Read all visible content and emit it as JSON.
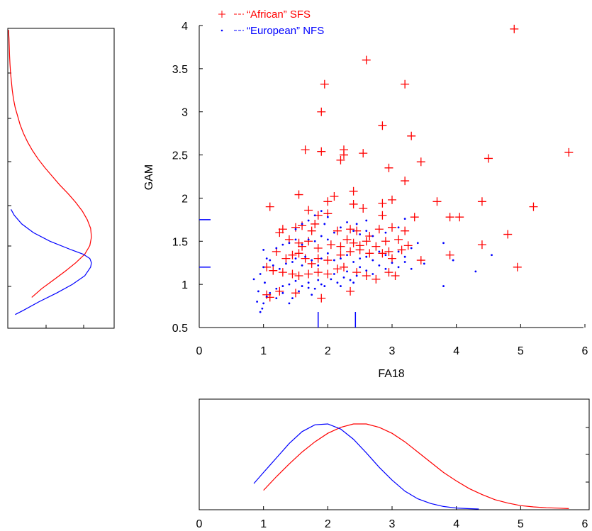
{
  "chart_data": [
    {
      "type": "scatter",
      "panel": "main",
      "xlabel": "FA18",
      "ylabel": "GAM",
      "xlim": [
        0,
        6
      ],
      "ylim": [
        0.5,
        4
      ],
      "xticks": [
        "0",
        "1",
        "2",
        "3",
        "4",
        "5",
        "6"
      ],
      "yticks": [
        "0.5",
        "1",
        "1.5",
        "2",
        "2.5",
        "3",
        "3.5",
        "4"
      ],
      "legend_position": "top-left",
      "series": [
        {
          "name": "“African” SFS",
          "marker": "plus",
          "color": "#ff0000",
          "points": [
            [
              4.9,
              3.96
            ],
            [
              2.6,
              3.6
            ],
            [
              1.95,
              3.32
            ],
            [
              3.2,
              3.32
            ],
            [
              1.9,
              3.0
            ],
            [
              2.85,
              2.84
            ],
            [
              3.3,
              2.72
            ],
            [
              1.65,
              2.56
            ],
            [
              1.9,
              2.54
            ],
            [
              2.55,
              2.52
            ],
            [
              2.25,
              2.56
            ],
            [
              2.25,
              2.5
            ],
            [
              2.2,
              2.44
            ],
            [
              3.45,
              2.42
            ],
            [
              4.5,
              2.46
            ],
            [
              5.75,
              2.53
            ],
            [
              2.95,
              2.35
            ],
            [
              3.2,
              2.2
            ],
            [
              1.55,
              2.04
            ],
            [
              2.0,
              1.96
            ],
            [
              2.1,
              2.02
            ],
            [
              2.4,
              2.08
            ],
            [
              2.4,
              1.93
            ],
            [
              2.55,
              1.88
            ],
            [
              2.85,
              1.94
            ],
            [
              3.0,
              1.98
            ],
            [
              3.7,
              1.96
            ],
            [
              4.4,
              1.96
            ],
            [
              1.1,
              1.9
            ],
            [
              2.85,
              1.8
            ],
            [
              3.35,
              1.78
            ],
            [
              3.9,
              1.78
            ],
            [
              4.05,
              1.78
            ],
            [
              5.2,
              1.9
            ],
            [
              1.7,
              1.86
            ],
            [
              1.85,
              1.8
            ],
            [
              2.0,
              1.82
            ],
            [
              1.8,
              1.7
            ],
            [
              1.75,
              1.62
            ],
            [
              1.6,
              1.68
            ],
            [
              1.5,
              1.66
            ],
            [
              1.3,
              1.64
            ],
            [
              1.25,
              1.6
            ],
            [
              2.15,
              1.62
            ],
            [
              2.35,
              1.64
            ],
            [
              2.45,
              1.62
            ],
            [
              2.65,
              1.56
            ],
            [
              2.8,
              1.64
            ],
            [
              3.0,
              1.66
            ],
            [
              3.2,
              1.62
            ],
            [
              4.8,
              1.58
            ],
            [
              1.4,
              1.52
            ],
            [
              1.55,
              1.48
            ],
            [
              1.6,
              1.44
            ],
            [
              1.7,
              1.5
            ],
            [
              1.85,
              1.42
            ],
            [
              2.05,
              1.46
            ],
            [
              2.2,
              1.44
            ],
            [
              2.3,
              1.52
            ],
            [
              2.4,
              1.48
            ],
            [
              2.5,
              1.45
            ],
            [
              2.6,
              1.5
            ],
            [
              2.75,
              1.44
            ],
            [
              2.9,
              1.5
            ],
            [
              3.1,
              1.52
            ],
            [
              3.25,
              1.45
            ],
            [
              3.15,
              1.4
            ],
            [
              4.4,
              1.46
            ],
            [
              1.2,
              1.38
            ],
            [
              1.35,
              1.3
            ],
            [
              1.45,
              1.34
            ],
            [
              1.55,
              1.36
            ],
            [
              1.65,
              1.3
            ],
            [
              1.75,
              1.24
            ],
            [
              1.85,
              1.3
            ],
            [
              2.0,
              1.28
            ],
            [
              2.2,
              1.34
            ],
            [
              2.35,
              1.38
            ],
            [
              2.5,
              1.4
            ],
            [
              2.65,
              1.36
            ],
            [
              2.85,
              1.36
            ],
            [
              2.95,
              1.38
            ],
            [
              3.0,
              1.3
            ],
            [
              3.9,
              1.34
            ],
            [
              1.05,
              1.2
            ],
            [
              1.15,
              1.16
            ],
            [
              1.3,
              1.14
            ],
            [
              1.45,
              1.12
            ],
            [
              1.55,
              1.1
            ],
            [
              1.7,
              1.12
            ],
            [
              1.85,
              1.14
            ],
            [
              2.0,
              1.12
            ],
            [
              2.15,
              1.18
            ],
            [
              2.25,
              1.2
            ],
            [
              2.45,
              1.14
            ],
            [
              2.6,
              1.1
            ],
            [
              2.75,
              1.06
            ],
            [
              2.95,
              1.14
            ],
            [
              3.05,
              1.1
            ],
            [
              3.45,
              1.28
            ],
            [
              4.95,
              1.2
            ],
            [
              1.05,
              0.88
            ],
            [
              1.1,
              0.85
            ],
            [
              1.25,
              0.92
            ],
            [
              1.5,
              0.9
            ],
            [
              1.9,
              0.84
            ],
            [
              2.35,
              0.92
            ]
          ]
        },
        {
          "name": "“European” NFS",
          "marker": "dot",
          "color": "#0000ff",
          "points": [
            [
              0.95,
              0.68
            ],
            [
              0.98,
              0.72
            ],
            [
              1.0,
              0.78
            ],
            [
              0.9,
              0.8
            ],
            [
              1.05,
              0.86
            ],
            [
              1.1,
              0.9
            ],
            [
              1.2,
              0.95
            ],
            [
              1.3,
              0.98
            ],
            [
              1.4,
              1.0
            ],
            [
              1.45,
              0.84
            ],
            [
              1.55,
              0.92
            ],
            [
              1.6,
              0.98
            ],
            [
              1.7,
              1.02
            ],
            [
              1.75,
              0.88
            ],
            [
              1.8,
              0.95
            ],
            [
              1.85,
              1.05
            ],
            [
              1.95,
              0.98
            ],
            [
              2.05,
              1.06
            ],
            [
              2.1,
              1.12
            ],
            [
              2.15,
              1.02
            ],
            [
              2.25,
              1.08
            ],
            [
              2.3,
              1.15
            ],
            [
              2.35,
              1.05
            ],
            [
              2.45,
              1.1
            ],
            [
              2.5,
              1.2
            ],
            [
              2.6,
              1.16
            ],
            [
              2.7,
              1.12
            ],
            [
              2.8,
              1.22
            ],
            [
              2.9,
              1.18
            ],
            [
              3.0,
              1.25
            ],
            [
              3.1,
              1.2
            ],
            [
              3.2,
              1.26
            ],
            [
              3.3,
              1.18
            ],
            [
              3.5,
              1.24
            ],
            [
              3.8,
              0.98
            ],
            [
              3.95,
              1.28
            ],
            [
              4.3,
              1.15
            ],
            [
              4.55,
              1.34
            ],
            [
              0.85,
              1.06
            ],
            [
              0.95,
              1.12
            ],
            [
              1.0,
              1.2
            ],
            [
              1.05,
              1.3
            ],
            [
              1.1,
              1.28
            ],
            [
              1.15,
              1.22
            ],
            [
              1.25,
              1.18
            ],
            [
              1.35,
              1.24
            ],
            [
              1.45,
              1.26
            ],
            [
              1.5,
              1.3
            ],
            [
              1.6,
              1.22
            ],
            [
              1.65,
              1.32
            ],
            [
              1.75,
              1.28
            ],
            [
              1.85,
              1.22
            ],
            [
              1.9,
              1.3
            ],
            [
              2.0,
              1.36
            ],
            [
              2.1,
              1.28
            ],
            [
              2.2,
              1.3
            ],
            [
              2.3,
              1.34
            ],
            [
              2.4,
              1.26
            ],
            [
              2.5,
              1.3
            ],
            [
              2.6,
              1.32
            ],
            [
              2.7,
              1.28
            ],
            [
              2.8,
              1.38
            ],
            [
              2.9,
              1.34
            ],
            [
              3.1,
              1.38
            ],
            [
              3.2,
              1.32
            ],
            [
              3.3,
              1.42
            ],
            [
              3.4,
              1.48
            ],
            [
              3.8,
              1.48
            ],
            [
              1.0,
              1.4
            ],
            [
              1.2,
              1.42
            ],
            [
              1.3,
              1.46
            ],
            [
              1.4,
              1.48
            ],
            [
              1.5,
              1.52
            ],
            [
              1.6,
              1.46
            ],
            [
              1.7,
              1.52
            ],
            [
              1.8,
              1.5
            ],
            [
              1.9,
              1.56
            ],
            [
              2.0,
              1.52
            ],
            [
              2.1,
              1.6
            ],
            [
              2.2,
              1.66
            ],
            [
              2.3,
              1.72
            ],
            [
              2.4,
              1.62
            ],
            [
              2.5,
              1.58
            ],
            [
              2.6,
              1.62
            ],
            [
              2.7,
              1.56
            ],
            [
              2.9,
              1.6
            ],
            [
              3.1,
              1.66
            ],
            [
              3.2,
              1.76
            ],
            [
              1.5,
              1.64
            ],
            [
              1.6,
              1.7
            ],
            [
              1.7,
              1.74
            ],
            [
              1.8,
              1.8
            ],
            [
              1.9,
              1.85
            ],
            [
              2.0,
              1.78
            ],
            [
              1.95,
              1.7
            ],
            [
              2.45,
              1.7
            ],
            [
              2.6,
              1.74
            ],
            [
              1.3,
              0.9
            ],
            [
              1.5,
              1.04
            ],
            [
              1.7,
              0.96
            ],
            [
              1.9,
              1.0
            ],
            [
              2.2,
              0.98
            ],
            [
              2.4,
              1.02
            ],
            [
              1.2,
              0.84
            ],
            [
              1.4,
              0.78
            ],
            [
              0.92,
              0.92
            ],
            [
              1.02,
              1.02
            ]
          ]
        }
      ],
      "axis_ticks_blue": {
        "x": [
          1.85,
          2.43
        ],
        "y": [
          1.2,
          1.75
        ]
      }
    },
    {
      "type": "line",
      "panel": "bottom-density",
      "description_axis": "FA18",
      "xlim": [
        0,
        6
      ],
      "xticks": [
        "0",
        "1",
        "2",
        "3",
        "4",
        "5",
        "6"
      ],
      "series": [
        {
          "name": "“African” SFS",
          "color": "#ff0000",
          "x": [
            1.0,
            1.2,
            1.4,
            1.6,
            1.8,
            2.0,
            2.2,
            2.4,
            2.6,
            2.8,
            3.0,
            3.2,
            3.4,
            3.6,
            3.8,
            4.0,
            4.2,
            4.4,
            4.6,
            4.8,
            5.0,
            5.2,
            5.4,
            5.6,
            5.75
          ],
          "y": [
            0.22,
            0.38,
            0.53,
            0.67,
            0.79,
            0.89,
            0.96,
            1.0,
            1.0,
            0.96,
            0.89,
            0.79,
            0.67,
            0.55,
            0.43,
            0.33,
            0.24,
            0.17,
            0.11,
            0.07,
            0.04,
            0.025,
            0.015,
            0.01,
            0.005
          ]
        },
        {
          "name": "“European” NFS",
          "color": "#0000ff",
          "x": [
            0.85,
            1.0,
            1.2,
            1.4,
            1.6,
            1.8,
            2.0,
            2.2,
            2.4,
            2.6,
            2.8,
            3.0,
            3.2,
            3.4,
            3.6,
            3.8,
            4.0,
            4.2,
            4.35
          ],
          "y": [
            0.3,
            0.43,
            0.6,
            0.77,
            0.91,
            0.99,
            1.0,
            0.94,
            0.82,
            0.66,
            0.49,
            0.34,
            0.21,
            0.12,
            0.065,
            0.03,
            0.012,
            0.004,
            0.0
          ]
        }
      ]
    },
    {
      "type": "line",
      "panel": "left-density",
      "description_axis": "GAM",
      "ylim": [
        0.5,
        4
      ],
      "series": [
        {
          "name": "“African” SFS",
          "color": "#ff0000",
          "y": [
            0.85,
            0.95,
            1.05,
            1.15,
            1.25,
            1.35,
            1.45,
            1.55,
            1.65,
            1.75,
            1.85,
            1.95,
            2.05,
            2.15,
            2.25,
            2.35,
            2.45,
            2.55,
            2.65,
            2.75,
            2.85,
            2.95,
            3.05,
            3.15,
            3.25,
            3.35,
            3.45,
            3.55,
            3.65,
            3.75,
            3.85,
            3.95
          ],
          "x": [
            0.28,
            0.4,
            0.54,
            0.68,
            0.81,
            0.92,
            0.98,
            1.0,
            0.99,
            0.95,
            0.89,
            0.81,
            0.72,
            0.62,
            0.53,
            0.44,
            0.36,
            0.29,
            0.23,
            0.18,
            0.14,
            0.11,
            0.08,
            0.06,
            0.045,
            0.035,
            0.025,
            0.018,
            0.013,
            0.009,
            0.006,
            0.0
          ]
        },
        {
          "name": "“European” NFS",
          "color": "#0000ff",
          "y": [
            0.65,
            0.7,
            0.8,
            0.9,
            1.0,
            1.1,
            1.2,
            1.25,
            1.3,
            1.35,
            1.4,
            1.5,
            1.6,
            1.7,
            1.8,
            1.87
          ],
          "x": [
            0.08,
            0.18,
            0.37,
            0.58,
            0.77,
            0.92,
            0.99,
            1.0,
            0.98,
            0.9,
            0.76,
            0.5,
            0.3,
            0.16,
            0.07,
            0.03
          ]
        }
      ]
    }
  ]
}
